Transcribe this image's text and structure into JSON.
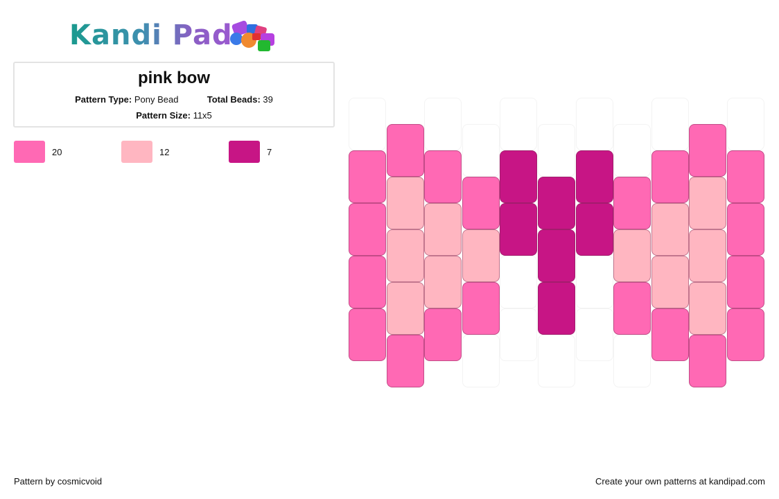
{
  "logo": {
    "text": "Kandi Pad",
    "icon": "beads-icon"
  },
  "pattern": {
    "title": "pink bow",
    "type_label": "Pattern Type:",
    "type_value": "Pony Bead",
    "total_label": "Total Beads:",
    "total_value": "39",
    "size_label": "Pattern Size:",
    "size_value": "11x5"
  },
  "legend": [
    {
      "color": "#ff69b4",
      "count": "20"
    },
    {
      "color": "#ffb6c1",
      "count": "12"
    },
    {
      "color": "#c71585",
      "count": "7"
    }
  ],
  "grid": {
    "columns": [
      [
        "E",
        "P",
        "P",
        "P",
        "P"
      ],
      [
        "P",
        "L",
        "L",
        "L",
        "P"
      ],
      [
        "E",
        "P",
        "L",
        "L",
        "P"
      ],
      [
        "E",
        "P",
        "L",
        "P",
        "E"
      ],
      [
        "E",
        "M",
        "M",
        "E",
        "E"
      ],
      [
        "E",
        "M",
        "M",
        "M",
        "E"
      ],
      [
        "E",
        "M",
        "M",
        "E",
        "E"
      ],
      [
        "E",
        "P",
        "L",
        "P",
        "E"
      ],
      [
        "E",
        "P",
        "L",
        "L",
        "P"
      ],
      [
        "P",
        "L",
        "L",
        "L",
        "P"
      ],
      [
        "E",
        "P",
        "P",
        "P",
        "P"
      ]
    ],
    "palette": {
      "P": "#ff69b4",
      "L": "#ffb6c1",
      "M": "#c71585",
      "E": "#ffffff"
    }
  },
  "footer": {
    "credit": "Pattern by cosmicvoid",
    "cta": "Create your own patterns at kandipad.com"
  }
}
